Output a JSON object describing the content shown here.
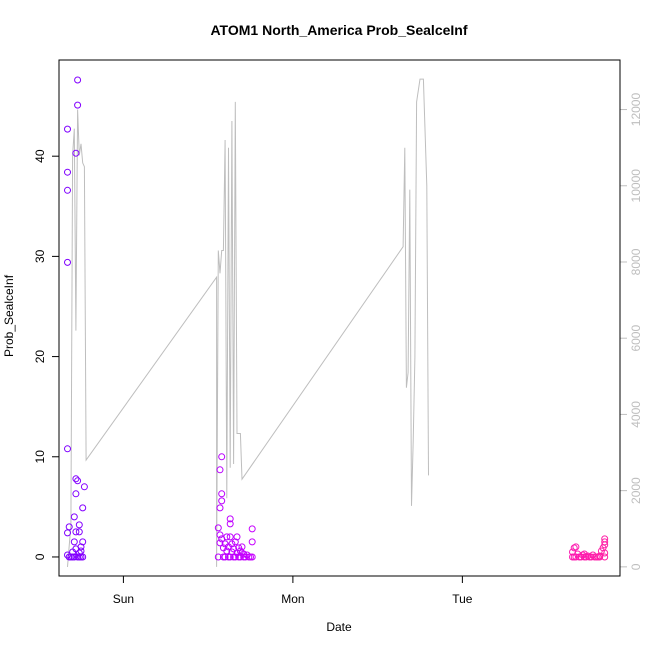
{
  "chart_data": {
    "type": "scatter",
    "title": "ATOM1 North_America Prob_SealceInf",
    "xlabel": "Date",
    "ylabel": "Prob_SealceInf",
    "x_ticks": [
      "Sun",
      "Mon",
      "Tue"
    ],
    "x_tick_positions": [
      1.0,
      2.0,
      3.0
    ],
    "xlim": [
      0.62,
      3.93
    ],
    "ylim": [
      -1.9,
      49.6
    ],
    "y_ticks": [
      0,
      10,
      20,
      30,
      40
    ],
    "y2lim": [
      -240,
      13300
    ],
    "y2_ticks": [
      0,
      2000,
      4000,
      6000,
      8000,
      10000,
      12000
    ],
    "grid": false,
    "colors": {
      "frame": "#000000",
      "secondary_axis": "#bebebe",
      "secondary_line": "#bebebe",
      "point_gradient": [
        "#7f00ff",
        "#e800ff",
        "#ff1fa6"
      ]
    },
    "series": [
      {
        "type": "scatter",
        "axis": "left",
        "points": [
          [
            0.67,
            10.8
          ],
          [
            0.67,
            29.4
          ],
          [
            0.67,
            36.6
          ],
          [
            0.67,
            38.4
          ],
          [
            0.67,
            42.7
          ],
          [
            0.67,
            2.4
          ],
          [
            0.67,
            0.2
          ],
          [
            0.68,
            0.0
          ],
          [
            0.68,
            3.0
          ],
          [
            0.69,
            0.0
          ],
          [
            0.7,
            0.0
          ],
          [
            0.7,
            0.5
          ],
          [
            0.71,
            1.5
          ],
          [
            0.71,
            4.0
          ],
          [
            0.71,
            0.0
          ],
          [
            0.72,
            7.8
          ],
          [
            0.72,
            6.3
          ],
          [
            0.72,
            2.5
          ],
          [
            0.72,
            0.8
          ],
          [
            0.72,
            40.3
          ],
          [
            0.73,
            45.1
          ],
          [
            0.73,
            47.6
          ],
          [
            0.73,
            7.6
          ],
          [
            0.73,
            0.0
          ],
          [
            0.74,
            2.5
          ],
          [
            0.74,
            3.2
          ],
          [
            0.74,
            0.0
          ],
          [
            0.74,
            0.4
          ],
          [
            0.75,
            1.0
          ],
          [
            0.75,
            0.0
          ],
          [
            0.75,
            0.6
          ],
          [
            0.76,
            1.5
          ],
          [
            0.76,
            4.9
          ],
          [
            0.77,
            7.0
          ],
          [
            0.76,
            0.0
          ],
          [
            1.56,
            0.0
          ],
          [
            1.56,
            2.9
          ],
          [
            1.57,
            1.4
          ],
          [
            1.57,
            2.2
          ],
          [
            1.57,
            4.9
          ],
          [
            1.57,
            8.7
          ],
          [
            1.58,
            10.0
          ],
          [
            1.58,
            6.3
          ],
          [
            1.58,
            5.6
          ],
          [
            1.58,
            1.8
          ],
          [
            1.59,
            0.0
          ],
          [
            1.59,
            0.9
          ],
          [
            1.6,
            1.3
          ],
          [
            1.6,
            0.0
          ],
          [
            1.61,
            0.6
          ],
          [
            1.61,
            2.0
          ],
          [
            1.62,
            0.0
          ],
          [
            1.62,
            1.0
          ],
          [
            1.63,
            3.3
          ],
          [
            1.63,
            3.8
          ],
          [
            1.63,
            0.0
          ],
          [
            1.63,
            2.0
          ],
          [
            1.64,
            0.5
          ],
          [
            1.64,
            1.3
          ],
          [
            1.65,
            0.0
          ],
          [
            1.65,
            0.8
          ],
          [
            1.66,
            1.5
          ],
          [
            1.66,
            0.0
          ],
          [
            1.67,
            0.4
          ],
          [
            1.67,
            2.0
          ],
          [
            1.68,
            0.0
          ],
          [
            1.68,
            0.9
          ],
          [
            1.69,
            0.6
          ],
          [
            1.69,
            0.0
          ],
          [
            1.7,
            0.4
          ],
          [
            1.7,
            1.0
          ],
          [
            1.71,
            0.0
          ],
          [
            1.71,
            0.3
          ],
          [
            1.72,
            0.0
          ],
          [
            1.73,
            0.2
          ],
          [
            1.74,
            0.0
          ],
          [
            1.75,
            0.0
          ],
          [
            1.76,
            1.5
          ],
          [
            1.76,
            2.8
          ],
          [
            1.76,
            0.0
          ],
          [
            3.65,
            0.0
          ],
          [
            3.65,
            0.5
          ],
          [
            3.66,
            0.0
          ],
          [
            3.66,
            0.9
          ],
          [
            3.67,
            1.0
          ],
          [
            3.67,
            0.0
          ],
          [
            3.68,
            0.3
          ],
          [
            3.69,
            0.0
          ],
          [
            3.7,
            0.0
          ],
          [
            3.71,
            0.2
          ],
          [
            3.72,
            0.3
          ],
          [
            3.72,
            0.0
          ],
          [
            3.73,
            0.0
          ],
          [
            3.74,
            0.1
          ],
          [
            3.75,
            0.0
          ],
          [
            3.76,
            0.0
          ],
          [
            3.77,
            0.2
          ],
          [
            3.78,
            0.0
          ],
          [
            3.79,
            0.0
          ],
          [
            3.8,
            0.0
          ],
          [
            3.81,
            0.1
          ],
          [
            3.81,
            0.0
          ],
          [
            3.82,
            0.6
          ],
          [
            3.83,
            0.9
          ],
          [
            3.84,
            1.2
          ],
          [
            3.84,
            1.5
          ],
          [
            3.84,
            1.8
          ],
          [
            3.84,
            0.4
          ],
          [
            3.84,
            0.0
          ]
        ]
      },
      {
        "type": "line",
        "axis": "right",
        "points": [
          [
            0.67,
            0
          ],
          [
            0.69,
            1100
          ],
          [
            0.7,
            10800
          ],
          [
            0.71,
            11500
          ],
          [
            0.72,
            6200
          ],
          [
            0.73,
            12000
          ],
          [
            0.74,
            10800
          ],
          [
            0.75,
            11100
          ],
          [
            0.76,
            10600
          ],
          [
            0.77,
            10500
          ],
          [
            0.78,
            2800
          ],
          [
            1.55,
            7600
          ],
          [
            1.55,
            0
          ],
          [
            1.56,
            8300
          ],
          [
            1.57,
            7700
          ],
          [
            1.58,
            8300
          ],
          [
            1.59,
            8300
          ],
          [
            1.6,
            11200
          ],
          [
            1.61,
            1800
          ],
          [
            1.62,
            11000
          ],
          [
            1.63,
            2600
          ],
          [
            1.64,
            11700
          ],
          [
            1.65,
            2700
          ],
          [
            1.66,
            12200
          ],
          [
            1.67,
            3500
          ],
          [
            1.68,
            3500
          ],
          [
            1.69,
            3500
          ],
          [
            1.7,
            2300
          ],
          [
            2.65,
            8400
          ],
          [
            2.66,
            11000
          ],
          [
            2.67,
            4700
          ],
          [
            2.68,
            5100
          ],
          [
            2.69,
            9900
          ],
          [
            2.7,
            1600
          ],
          [
            2.71,
            3300
          ],
          [
            2.72,
            5500
          ],
          [
            2.73,
            12200
          ],
          [
            2.75,
            12800
          ],
          [
            2.77,
            12800
          ],
          [
            2.79,
            10000
          ],
          [
            2.8,
            2400
          ]
        ]
      }
    ]
  }
}
